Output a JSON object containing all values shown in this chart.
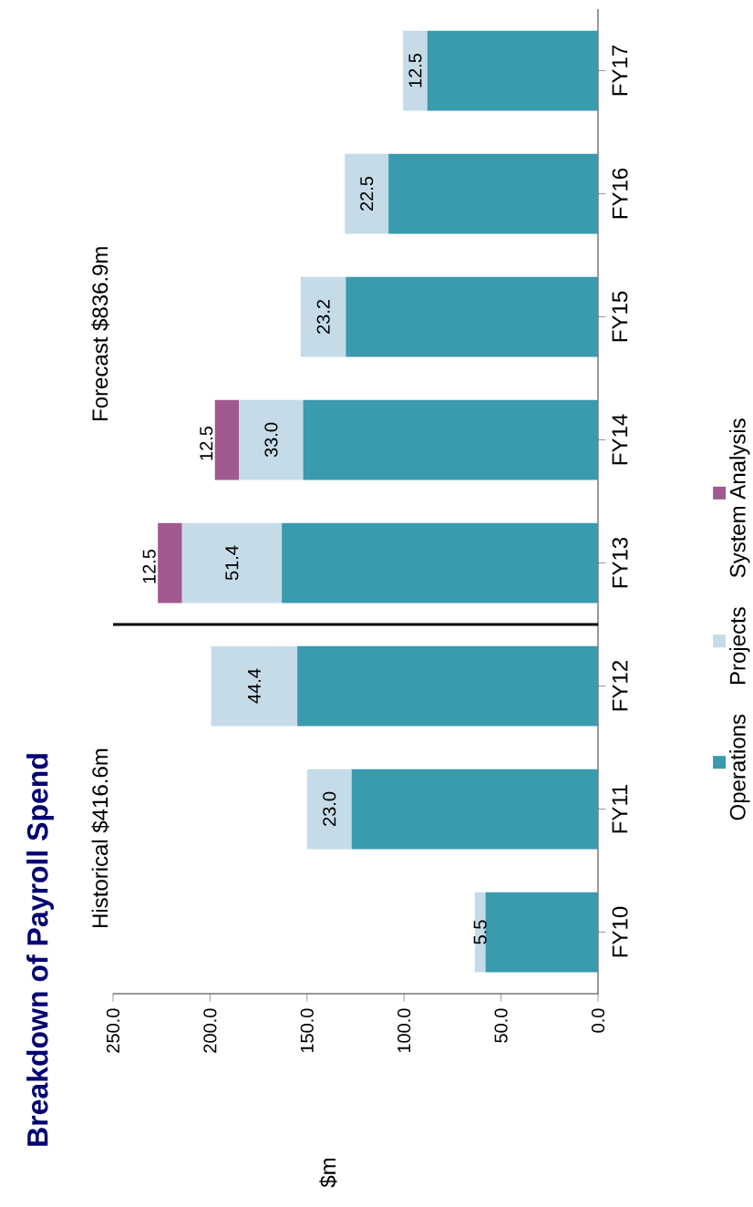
{
  "chart_data": {
    "type": "bar",
    "stacked": true,
    "orientation": "horizontal",
    "title": "Breakdown of Payroll Spend",
    "annotations": [
      "Historical $416.6m",
      "Forecast $836.9m",
      "$m"
    ],
    "categories": [
      "FY17",
      "FY16",
      "FY15",
      "FY14",
      "FY13",
      "FY12",
      "FY11",
      "FY10"
    ],
    "series": [
      {
        "name": "Operations",
        "color": "#3a9aae",
        "values": [
          88,
          108,
          130,
          152,
          163,
          155,
          127,
          58
        ]
      },
      {
        "name": "Projects",
        "color": "#c5dbe8",
        "values": [
          12.5,
          22.5,
          23.2,
          33.0,
          51.4,
          44.4,
          23.0,
          5.5
        ],
        "value_labels": [
          "12.5",
          "22.5",
          "23.2",
          "33.0",
          "51.4",
          "44.4",
          "23.0",
          "5.5"
        ]
      },
      {
        "name": "System Analysis",
        "color": "#a05a90",
        "values": [
          0,
          0,
          0,
          12.5,
          12.5,
          0,
          0,
          0
        ],
        "value_labels": [
          null,
          null,
          null,
          "12.5",
          "12.5",
          null,
          null,
          null
        ]
      }
    ],
    "xlim": [
      250,
      0
    ],
    "xticks": [
      {
        "value": 0,
        "label": "0.0"
      },
      {
        "value": 50,
        "label": "50.0"
      },
      {
        "value": 100,
        "label": "100.0"
      },
      {
        "value": 150,
        "label": "150.0"
      },
      {
        "value": 200,
        "label": "200.0"
      },
      {
        "value": 250,
        "label": "250.0"
      }
    ],
    "legend": "right"
  }
}
